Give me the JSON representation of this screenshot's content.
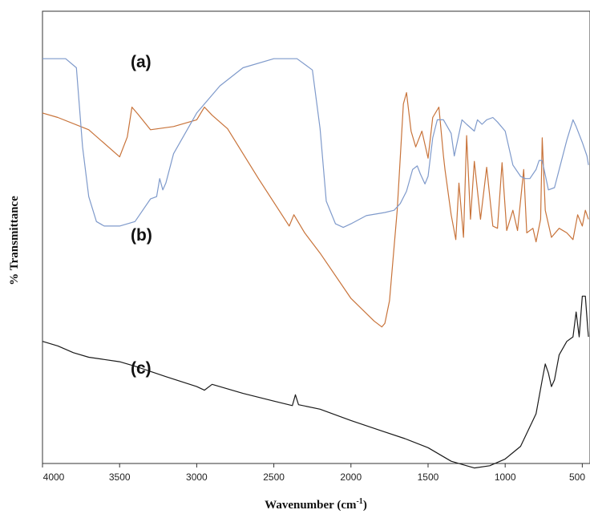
{
  "chart_data": {
    "type": "line",
    "title": "",
    "xlabel_main": "Wavenumber (cm",
    "xlabel_sup": "-1",
    "xlabel_tail": ")",
    "ylabel": "% Transmittance",
    "xlim": [
      4000,
      450
    ],
    "x_reversed": true,
    "yaxis_ticks": false,
    "grid": false,
    "legend": "none",
    "xticks": [
      4000,
      3500,
      3000,
      2500,
      2000,
      1500,
      1000,
      500
    ],
    "tick_labels": [
      "4000",
      "3500",
      "3000",
      "2500",
      "2000",
      "1500",
      "1000",
      "500"
    ],
    "series": [
      {
        "name": "(a)",
        "color": "#c8733a",
        "x": [
          4000,
          3900,
          3700,
          3500,
          3450,
          3420,
          3380,
          3300,
          3150,
          3000,
          2950,
          2900,
          2800,
          2600,
          2400,
          2370,
          2300,
          2200,
          2000,
          1850,
          1800,
          1780,
          1750,
          1700,
          1660,
          1640,
          1610,
          1580,
          1540,
          1500,
          1470,
          1430,
          1400,
          1390,
          1350,
          1320,
          1300,
          1270,
          1250,
          1225,
          1200,
          1160,
          1120,
          1080,
          1050,
          1020,
          990,
          950,
          920,
          880,
          860,
          820,
          800,
          770,
          760,
          740,
          700,
          650,
          600,
          560,
          530,
          500,
          480,
          460
        ],
        "y": [
          0.225,
          0.235,
          0.262,
          0.322,
          0.278,
          0.212,
          0.228,
          0.262,
          0.255,
          0.24,
          0.212,
          0.23,
          0.26,
          0.37,
          0.475,
          0.45,
          0.49,
          0.535,
          0.635,
          0.685,
          0.698,
          0.69,
          0.64,
          0.44,
          0.205,
          0.18,
          0.265,
          0.3,
          0.265,
          0.325,
          0.235,
          0.212,
          0.32,
          0.35,
          0.45,
          0.505,
          0.38,
          0.5,
          0.275,
          0.46,
          0.332,
          0.46,
          0.345,
          0.475,
          0.48,
          0.335,
          0.485,
          0.44,
          0.485,
          0.35,
          0.49,
          0.48,
          0.51,
          0.46,
          0.28,
          0.44,
          0.5,
          0.48,
          0.49,
          0.505,
          0.45,
          0.475,
          0.44,
          0.46
        ]
      },
      {
        "name": "(b)",
        "color": "#7f9acb",
        "x": [
          4000,
          3850,
          3780,
          3740,
          3700,
          3650,
          3600,
          3500,
          3400,
          3300,
          3260,
          3240,
          3220,
          3200,
          3150,
          3000,
          2850,
          2700,
          2500,
          2350,
          2250,
          2200,
          2160,
          2100,
          2050,
          2000,
          1900,
          1780,
          1720,
          1680,
          1640,
          1600,
          1570,
          1550,
          1520,
          1500,
          1470,
          1440,
          1400,
          1350,
          1330,
          1280,
          1250,
          1200,
          1180,
          1150,
          1120,
          1080,
          1050,
          1000,
          950,
          900,
          870,
          840,
          800,
          780,
          760,
          720,
          680,
          600,
          560,
          540,
          500,
          470,
          460
        ],
        "y": [
          0.105,
          0.105,
          0.125,
          0.3,
          0.41,
          0.465,
          0.475,
          0.475,
          0.465,
          0.415,
          0.41,
          0.37,
          0.395,
          0.38,
          0.315,
          0.225,
          0.165,
          0.125,
          0.105,
          0.105,
          0.13,
          0.26,
          0.42,
          0.47,
          0.478,
          0.47,
          0.452,
          0.445,
          0.44,
          0.425,
          0.398,
          0.35,
          0.342,
          0.36,
          0.382,
          0.365,
          0.28,
          0.24,
          0.24,
          0.27,
          0.32,
          0.24,
          0.25,
          0.265,
          0.24,
          0.25,
          0.24,
          0.235,
          0.245,
          0.265,
          0.34,
          0.365,
          0.37,
          0.37,
          0.35,
          0.33,
          0.33,
          0.395,
          0.39,
          0.285,
          0.24,
          0.255,
          0.29,
          0.32,
          0.34
        ]
      },
      {
        "name": "(c)",
        "color": "#1a1a1a",
        "x": [
          4000,
          3900,
          3800,
          3700,
          3600,
          3500,
          3400,
          3200,
          3000,
          2950,
          2900,
          2700,
          2500,
          2380,
          2360,
          2340,
          2200,
          2000,
          1800,
          1650,
          1500,
          1350,
          1250,
          1200,
          1100,
          1000,
          900,
          800,
          760,
          740,
          720,
          700,
          680,
          650,
          600,
          560,
          540,
          520,
          500,
          480,
          465,
          460
        ],
        "y": [
          0.73,
          0.74,
          0.755,
          0.765,
          0.77,
          0.775,
          0.785,
          0.808,
          0.83,
          0.838,
          0.825,
          0.845,
          0.862,
          0.872,
          0.848,
          0.87,
          0.88,
          0.905,
          0.928,
          0.945,
          0.965,
          0.995,
          1.005,
          1.01,
          1.005,
          0.99,
          0.962,
          0.89,
          0.815,
          0.78,
          0.8,
          0.83,
          0.815,
          0.76,
          0.73,
          0.72,
          0.665,
          0.72,
          0.63,
          0.63,
          0.7,
          0.72
        ]
      }
    ],
    "annotations": [
      "(a)",
      "(b)",
      "(c)"
    ]
  }
}
